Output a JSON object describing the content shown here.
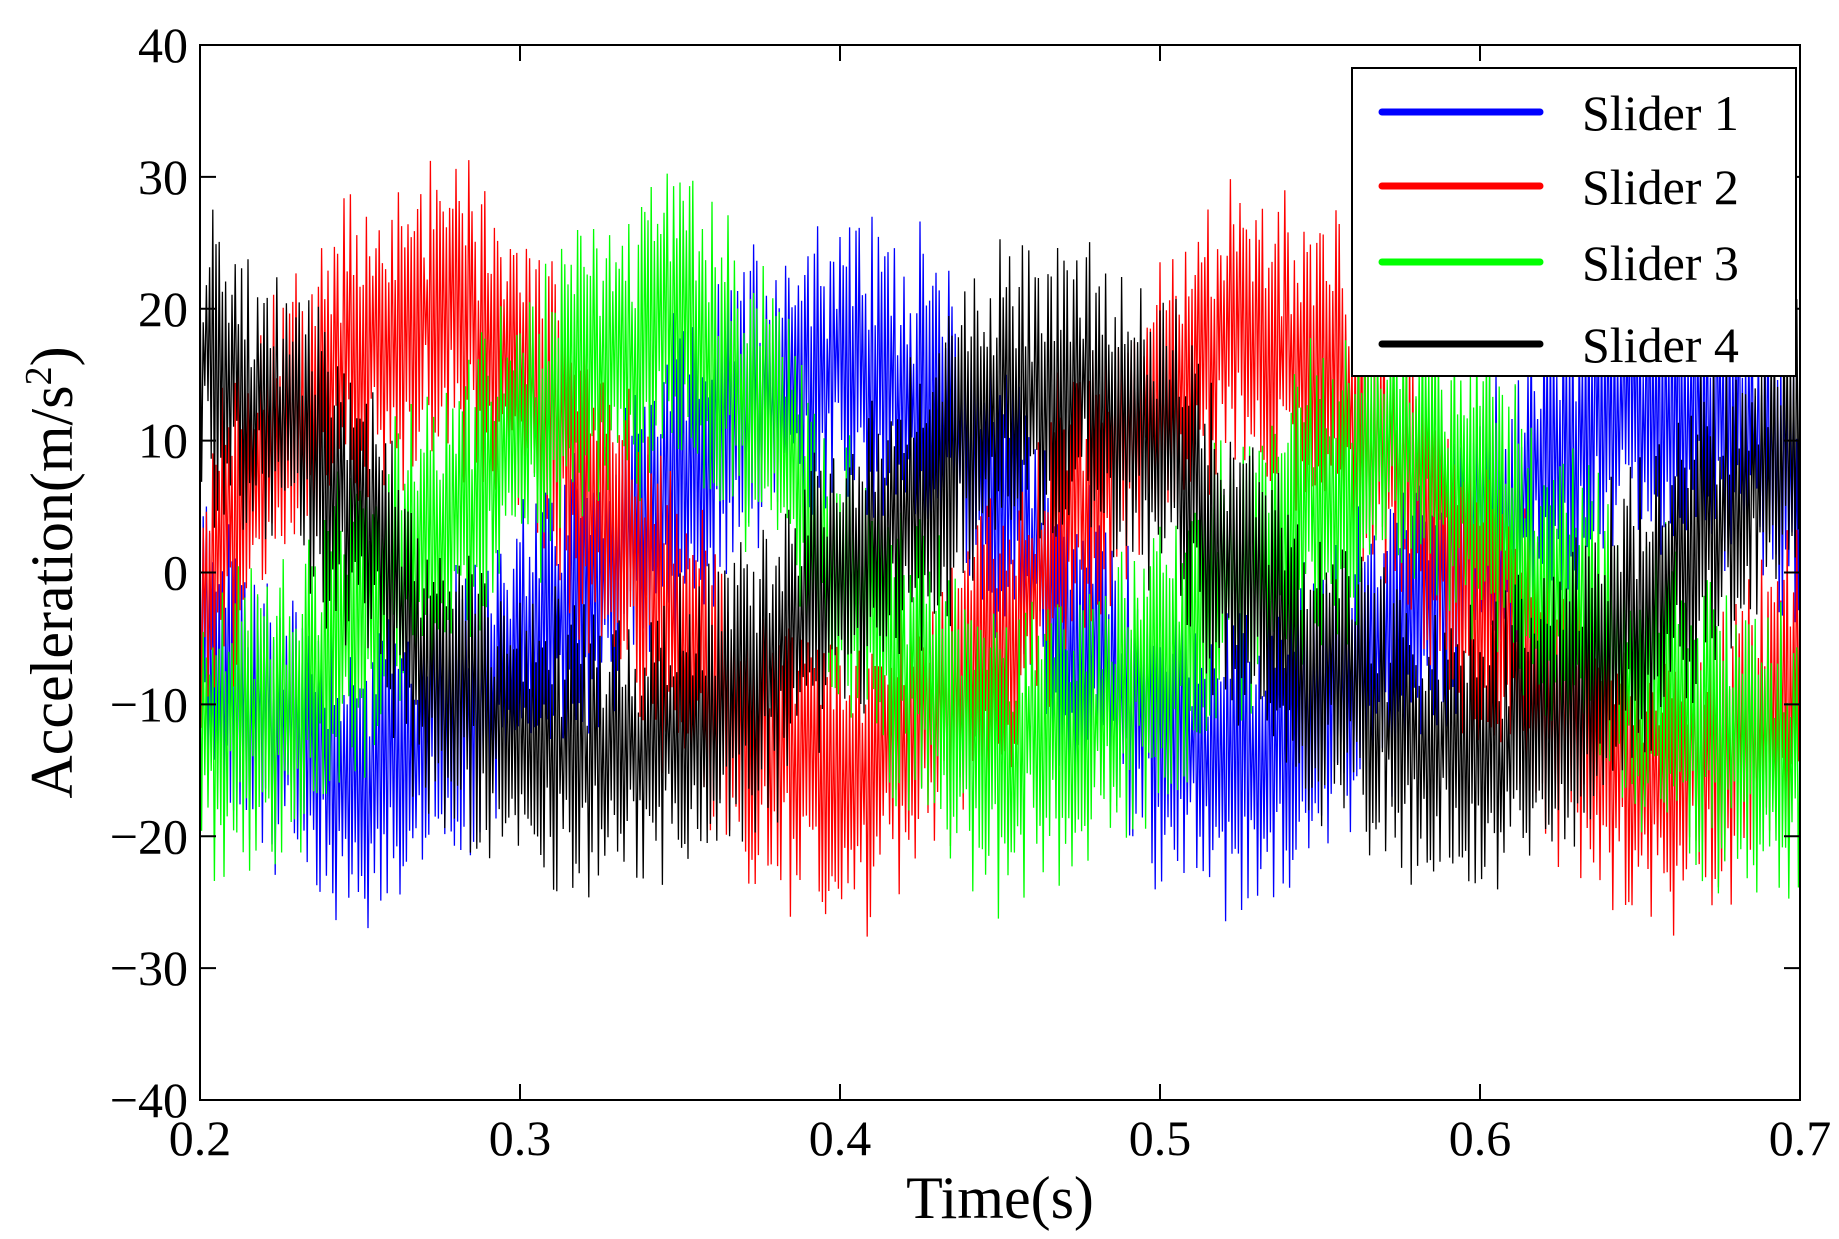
{
  "chart_data": {
    "type": "line",
    "title": "",
    "xlabel": "Time(s)",
    "ylabel_base": "Acceleration(m/s",
    "ylabel_sup": "2",
    "ylabel_close": ")",
    "xlim": [
      0.2,
      0.7
    ],
    "ylim": [
      -40,
      40
    ],
    "x_ticks": [
      0.2,
      0.3,
      0.4,
      0.5,
      0.6,
      0.7
    ],
    "x_tick_labels": [
      "0.2",
      "0.3",
      "0.4",
      "0.5",
      "0.6",
      "0.7"
    ],
    "y_ticks": [
      -40,
      -30,
      -20,
      -10,
      0,
      10,
      20,
      30,
      40
    ],
    "y_tick_labels": [
      "−40",
      "−30",
      "−20",
      "−10",
      "0",
      "10",
      "20",
      "30",
      "40"
    ],
    "grid": false,
    "legend_position": "top-right",
    "noise_amplitude_ms2": 10,
    "sample_period_s": 0.0005,
    "series": [
      {
        "name": "Slider 1",
        "color": "#0000ff",
        "x": [
          0.2,
          0.225,
          0.25,
          0.275,
          0.3,
          0.325,
          0.35,
          0.375,
          0.4,
          0.425,
          0.45,
          0.475,
          0.5,
          0.525,
          0.55,
          0.575,
          0.6,
          0.625,
          0.65,
          0.675,
          0.7
        ],
        "y": [
          -5,
          -12,
          -16,
          -12,
          -6,
          0,
          7,
          14,
          16,
          14,
          6,
          -5,
          -12,
          -15,
          -10,
          -4,
          3,
          9,
          13,
          12,
          6
        ]
      },
      {
        "name": "Slider 2",
        "color": "#ff0000",
        "x": [
          0.2,
          0.225,
          0.25,
          0.275,
          0.3,
          0.325,
          0.35,
          0.375,
          0.4,
          0.425,
          0.45,
          0.475,
          0.5,
          0.525,
          0.55,
          0.575,
          0.6,
          0.625,
          0.65,
          0.675,
          0.7
        ],
        "y": [
          0,
          10,
          17,
          20,
          15,
          5,
          -5,
          -13,
          -16,
          -12,
          -5,
          5,
          13,
          18,
          16,
          8,
          -2,
          -10,
          -16,
          -14,
          -8
        ]
      },
      {
        "name": "Slider 3",
        "color": "#00ff00",
        "x": [
          0.2,
          0.225,
          0.25,
          0.275,
          0.3,
          0.325,
          0.35,
          0.375,
          0.4,
          0.425,
          0.45,
          0.475,
          0.5,
          0.525,
          0.55,
          0.575,
          0.6,
          0.625,
          0.65,
          0.675,
          0.7
        ],
        "y": [
          -12,
          -10,
          -4,
          4,
          10,
          16,
          20,
          12,
          0,
          -8,
          -14,
          -12,
          -7,
          0,
          6,
          10,
          6,
          -2,
          -8,
          -12,
          -14
        ]
      },
      {
        "name": "Slider 4",
        "color": "#000000",
        "x": [
          0.2,
          0.225,
          0.25,
          0.275,
          0.3,
          0.325,
          0.35,
          0.375,
          0.4,
          0.425,
          0.45,
          0.475,
          0.5,
          0.525,
          0.55,
          0.575,
          0.6,
          0.625,
          0.65,
          0.675,
          0.7
        ],
        "y": [
          16,
          12,
          4,
          -8,
          -12,
          -14,
          -12,
          -8,
          0,
          6,
          13,
          14,
          10,
          0,
          -8,
          -12,
          -14,
          -10,
          -3,
          4,
          10
        ]
      }
    ]
  }
}
